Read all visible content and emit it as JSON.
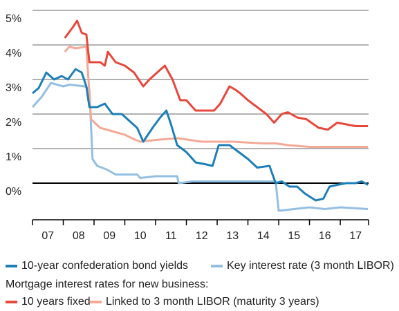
{
  "chart_data": {
    "type": "line",
    "ylim": [
      -1.06,
      5
    ],
    "yticks": [
      {
        "value": 0,
        "label": "0%"
      },
      {
        "value": 1,
        "label": "1%"
      },
      {
        "value": 2,
        "label": "2%"
      },
      {
        "value": 3,
        "label": "3%"
      },
      {
        "value": 4,
        "label": "4%"
      },
      {
        "value": 5,
        "label": "5%"
      }
    ],
    "grid": true,
    "zero_line": true,
    "xlim": [
      2007,
      2017.92
    ],
    "xticks": [
      {
        "value": 2007.5,
        "label": "07"
      },
      {
        "value": 2008.5,
        "label": "08"
      },
      {
        "value": 2009.5,
        "label": "09"
      },
      {
        "value": 2010.5,
        "label": "10"
      },
      {
        "value": 2011.5,
        "label": "11"
      },
      {
        "value": 2012.5,
        "label": "12"
      },
      {
        "value": 2013.5,
        "label": "13"
      },
      {
        "value": 2014.5,
        "label": "14"
      },
      {
        "value": 2015.5,
        "label": "15"
      },
      {
        "value": 2016.5,
        "label": "16"
      },
      {
        "value": 2017.5,
        "label": "17"
      }
    ],
    "xtick_marks": [
      2007,
      2008,
      2009,
      2010,
      2011,
      2012,
      2013,
      2014,
      2015,
      2016,
      2017
    ],
    "legend_heading": "Mortgage interest rates for new business:",
    "legend": "bottom",
    "series": [
      {
        "name": "10-year confederation bond yields",
        "color": "#1c7fb8",
        "x": [
          2007.0,
          2007.2,
          2007.45,
          2007.7,
          2007.95,
          2008.15,
          2008.4,
          2008.6,
          2008.75,
          2008.85,
          2009.1,
          2009.35,
          2009.6,
          2009.9,
          2010.15,
          2010.4,
          2010.6,
          2010.9,
          2011.15,
          2011.35,
          2011.5,
          2011.7,
          2012.0,
          2012.3,
          2012.6,
          2012.85,
          2013.05,
          2013.4,
          2013.7,
          2014.0,
          2014.3,
          2014.7,
          2014.9,
          2015.1,
          2015.35,
          2015.6,
          2015.85,
          2016.2,
          2016.45,
          2016.65,
          2016.9,
          2017.2,
          2017.5,
          2017.7,
          2017.9
        ],
        "values": [
          2.6,
          2.75,
          3.2,
          3.0,
          3.1,
          3.0,
          3.3,
          3.2,
          2.8,
          2.2,
          2.2,
          2.3,
          2.0,
          2.0,
          1.8,
          1.6,
          1.2,
          1.6,
          1.9,
          2.1,
          1.7,
          1.1,
          0.9,
          0.6,
          0.55,
          0.5,
          1.1,
          1.1,
          0.9,
          0.7,
          0.45,
          0.5,
          0.0,
          0.05,
          -0.1,
          -0.1,
          -0.3,
          -0.5,
          -0.45,
          -0.1,
          -0.05,
          0.0,
          0.0,
          0.05,
          -0.05
        ]
      },
      {
        "name": "Key interest rate (3 month LIBOR)",
        "color": "#93bfe3",
        "x": [
          2007.0,
          2007.3,
          2007.6,
          2008.0,
          2008.2,
          2008.7,
          2008.85,
          2008.95,
          2009.1,
          2009.4,
          2009.7,
          2010.4,
          2010.5,
          2011.0,
          2011.7,
          2011.75,
          2012.2,
          2014.9,
          2015.0,
          2015.5,
          2016.0,
          2016.5,
          2017.0,
          2017.9
        ],
        "values": [
          2.2,
          2.5,
          2.9,
          2.8,
          2.85,
          2.8,
          2.7,
          0.7,
          0.5,
          0.4,
          0.25,
          0.25,
          0.15,
          0.2,
          0.2,
          0.0,
          0.05,
          0.05,
          -0.8,
          -0.75,
          -0.7,
          -0.75,
          -0.7,
          -0.75
        ]
      },
      {
        "name": "10 years fixed",
        "color": "#e8473c",
        "x": [
          2008.05,
          2008.3,
          2008.45,
          2008.6,
          2008.75,
          2008.85,
          2009.2,
          2009.35,
          2009.45,
          2009.7,
          2010.0,
          2010.3,
          2010.6,
          2010.8,
          2011.05,
          2011.3,
          2011.55,
          2011.8,
          2012.0,
          2012.3,
          2012.6,
          2012.9,
          2013.1,
          2013.4,
          2013.6,
          2013.75,
          2014.0,
          2014.3,
          2014.6,
          2014.85,
          2015.1,
          2015.3,
          2015.6,
          2015.9,
          2016.3,
          2016.6,
          2016.9,
          2017.2,
          2017.5,
          2017.9
        ],
        "values": [
          4.2,
          4.5,
          4.7,
          4.35,
          4.3,
          3.5,
          3.5,
          3.4,
          3.8,
          3.5,
          3.4,
          3.2,
          2.8,
          3.0,
          3.2,
          3.4,
          3.0,
          2.4,
          2.4,
          2.1,
          2.1,
          2.1,
          2.3,
          2.8,
          2.7,
          2.6,
          2.4,
          2.2,
          2.0,
          1.75,
          2.0,
          2.05,
          1.9,
          1.85,
          1.6,
          1.55,
          1.75,
          1.7,
          1.65,
          1.65
        ]
      },
      {
        "name": "Linked to 3 month LIBOR (maturity 3 years)",
        "color": "#f4a996",
        "x": [
          2008.05,
          2008.2,
          2008.4,
          2008.75,
          2008.9,
          2009.2,
          2009.6,
          2010.0,
          2010.35,
          2010.5,
          2011.0,
          2011.7,
          2012.5,
          2013.5,
          2014.5,
          2014.9,
          2015.3,
          2016.0,
          2017.9
        ],
        "values": [
          3.8,
          3.95,
          3.9,
          3.95,
          1.85,
          1.6,
          1.5,
          1.4,
          1.25,
          1.2,
          1.25,
          1.3,
          1.2,
          1.2,
          1.15,
          1.15,
          1.1,
          1.05,
          1.05
        ]
      }
    ]
  }
}
